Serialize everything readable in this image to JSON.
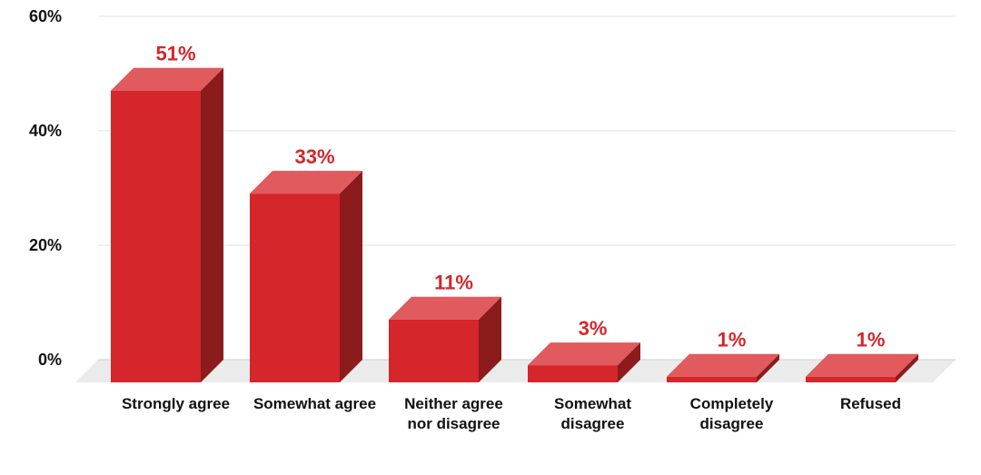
{
  "chart_data": {
    "type": "bar",
    "title": "",
    "xlabel": "",
    "ylabel": "",
    "categories": [
      [
        "Strongly agree"
      ],
      [
        "Somewhat agree"
      ],
      [
        "Neither agree",
        "nor disagree"
      ],
      [
        "Somewhat",
        "disagree"
      ],
      [
        "Completely",
        "disagree"
      ],
      [
        "Refused"
      ]
    ],
    "values": [
      51,
      33,
      11,
      3,
      1,
      1
    ],
    "data_labels": [
      "51%",
      "33%",
      "11%",
      "3%",
      "1%",
      "1%"
    ],
    "ylim": [
      0,
      60
    ],
    "yticks": [
      0,
      20,
      40,
      60
    ],
    "ytick_labels": [
      "0%",
      "20%",
      "40%",
      "60%"
    ],
    "grid": true,
    "colors": {
      "bar_front": "#d4262b",
      "bar_top": "#e05a5e",
      "bar_side": "#8c1c1c",
      "label": "#d4262b",
      "grid": "#e3e3e3",
      "floor": "#ebebeb"
    }
  }
}
